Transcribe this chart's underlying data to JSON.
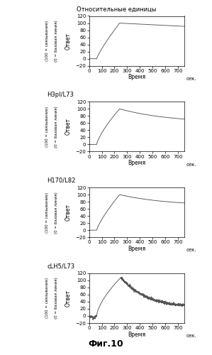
{
  "title_top": "Относительные единицы",
  "fig_label": "Фиг.10",
  "xlabel": "Время",
  "xlabel_suffix": "сек.",
  "ylabel_line1": "Ответ",
  "ylabel_line2": "(0 = базовая линия)",
  "ylabel_line3": "(100 = связывание)",
  "ylim": [
    -20,
    120
  ],
  "yticks": [
    -20,
    0,
    20,
    40,
    60,
    80,
    100,
    120
  ],
  "xlim": [
    0,
    750
  ],
  "xticks": [
    0,
    100,
    200,
    300,
    400,
    500,
    600,
    700
  ],
  "subplot_labels": [
    "",
    "H3pI/L73",
    "H170/L82",
    "cLH5/L73"
  ],
  "curve_color": "#555555",
  "background_color": "#ffffff"
}
